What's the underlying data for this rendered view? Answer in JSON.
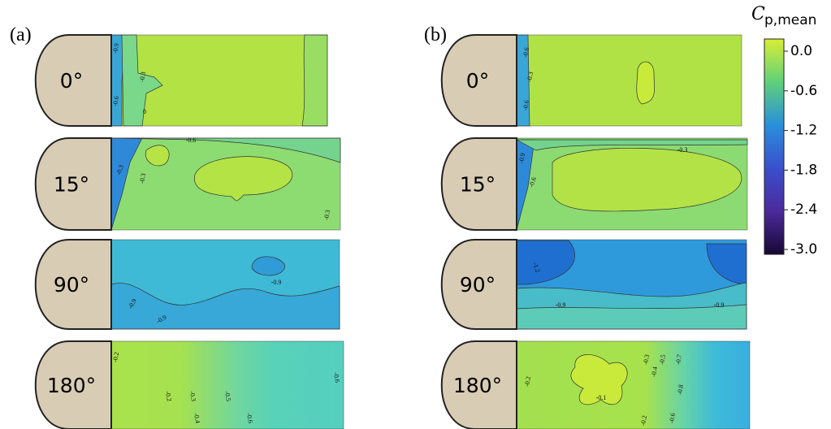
{
  "panels": [
    {
      "label": "(a)",
      "rows": [
        {
          "angle": "0°",
          "contour_labels": [
            "-0.9",
            "-0.6",
            "-0.3",
            "0"
          ]
        },
        {
          "angle": "15°",
          "contour_labels": [
            "-0.6",
            "-0.3",
            "-0.3",
            "-0.3"
          ]
        },
        {
          "angle": "90°",
          "contour_labels": [
            "-0.9",
            "-0.9",
            "-0.9"
          ]
        },
        {
          "angle": "180°",
          "contour_labels": [
            "-0.2",
            "-0.2",
            "-0.3",
            "-0.5",
            "-0.4",
            "-0.6",
            "-0.6"
          ]
        }
      ]
    },
    {
      "label": "(b)",
      "rows": [
        {
          "angle": "0°",
          "contour_labels": [
            "-0.6",
            "-0.3",
            "-0.6"
          ]
        },
        {
          "angle": "15°",
          "contour_labels": [
            "-0.9",
            "-0.6",
            "-0.3"
          ]
        },
        {
          "angle": "90°",
          "contour_labels": [
            "-1.2",
            "-0.9",
            "-0.9"
          ]
        },
        {
          "angle": "180°",
          "contour_labels": [
            "-0.2",
            "-0.1",
            "-0.3",
            "-0.4",
            "-0.5",
            "-0.7",
            "-0.8",
            "-0.2",
            "-0.6"
          ]
        }
      ]
    }
  ],
  "colorbar": {
    "symbol": "C",
    "subscript": "p,mean",
    "ticks": [
      "0.0",
      "-0.6",
      "-1.2",
      "-1.8",
      "-2.4",
      "-3.0"
    ]
  }
}
